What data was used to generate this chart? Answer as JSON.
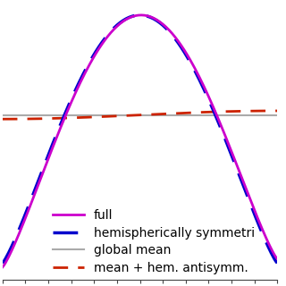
{
  "title": "",
  "xlabel": "",
  "ylabel": "",
  "x_range": [
    -90,
    90
  ],
  "lines": {
    "full": {
      "color": "#cc00cc",
      "linestyle": "solid",
      "linewidth": 2.0,
      "label": "full"
    },
    "hem_sym": {
      "color": "#0000cc",
      "linestyle": "dashed",
      "linewidth": 2.5,
      "label": "hemispherically symmetri"
    },
    "global_mean": {
      "color": "#aaaaaa",
      "linestyle": "solid",
      "linewidth": 1.5,
      "label": "global mean"
    },
    "antisymm": {
      "color": "#cc2200",
      "linestyle": "dashed",
      "linewidth": 2.0,
      "label": "mean + hem. antisymm."
    }
  },
  "legend_fontsize": 10,
  "legend_loc": "lower center",
  "background_color": "#ffffff",
  "figsize": [
    3.2,
    3.2
  ],
  "dpi": 100
}
